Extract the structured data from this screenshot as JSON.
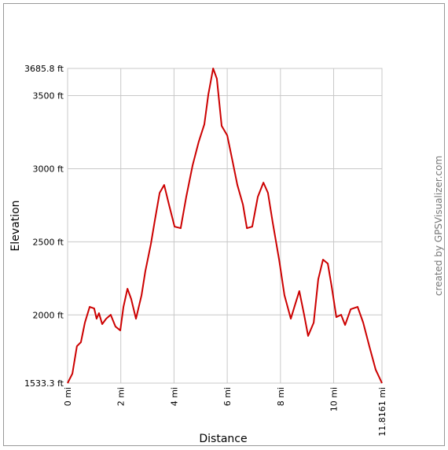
{
  "chart_data": {
    "type": "line",
    "xlabel": "Distance",
    "ylabel": "Elevation",
    "credit": "created by GPSVisualizer.com",
    "x": [
      0,
      0.18,
      0.35,
      0.5,
      0.65,
      0.83,
      1.0,
      1.09,
      1.18,
      1.3,
      1.45,
      1.62,
      1.8,
      1.98,
      2.1,
      2.25,
      2.39,
      2.57,
      2.78,
      2.92,
      3.13,
      3.28,
      3.46,
      3.63,
      3.81,
      4.02,
      4.25,
      4.46,
      4.7,
      4.93,
      5.14,
      5.29,
      5.47,
      5.61,
      5.79,
      6.0,
      6.2,
      6.38,
      6.59,
      6.74,
      6.94,
      7.15,
      7.36,
      7.53,
      7.71,
      7.95,
      8.15,
      8.39,
      8.57,
      8.71,
      8.89,
      9.04,
      9.25,
      9.42,
      9.6,
      9.78,
      9.93,
      10.1,
      10.28,
      10.43,
      10.64,
      10.9,
      11.11,
      11.34,
      11.58,
      11.8161
    ],
    "series": [
      {
        "name": "Elevation",
        "color": "#cc0000",
        "values": [
          1533.3,
          1598,
          1786,
          1813,
          1947,
          2055,
          2044,
          1974,
          2012,
          1937,
          1974,
          2001,
          1920,
          1894,
          2055,
          2179,
          2109,
          1974,
          2135,
          2297,
          2485,
          2647,
          2835,
          2889,
          2755,
          2604,
          2593,
          2808,
          3024,
          3185,
          3304,
          3508,
          3685.8,
          3616,
          3293,
          3228,
          3051,
          2889,
          2755,
          2593,
          2604,
          2808,
          2905,
          2835,
          2631,
          2378,
          2135,
          1974,
          2082,
          2163,
          2001,
          1856,
          1947,
          2243,
          2378,
          2351,
          2189,
          1985,
          2001,
          1931,
          2039,
          2055,
          1947,
          1786,
          1625,
          1533.3
        ]
      }
    ],
    "xlim": [
      0,
      11.8161
    ],
    "xticks": [
      {
        "value": 0,
        "label": "0 mi"
      },
      {
        "value": 2,
        "label": "2 mi"
      },
      {
        "value": 4,
        "label": "4 mi"
      },
      {
        "value": 6,
        "label": "6 mi"
      },
      {
        "value": 8,
        "label": "8 mi"
      },
      {
        "value": 10,
        "label": "10 mi"
      },
      {
        "value": 11.8161,
        "label": "11.8161 mi"
      }
    ],
    "ylim": [
      1533.3,
      3685.8
    ],
    "yticks": [
      {
        "value": 1533.3,
        "label": "1533.3 ft"
      },
      {
        "value": 2000,
        "label": "2000 ft"
      },
      {
        "value": 2500,
        "label": "2500 ft"
      },
      {
        "value": 3000,
        "label": "3000 ft"
      },
      {
        "value": 3500,
        "label": "3500 ft"
      },
      {
        "value": 3685.8,
        "label": "3685.8 ft"
      }
    ],
    "grid": true
  }
}
